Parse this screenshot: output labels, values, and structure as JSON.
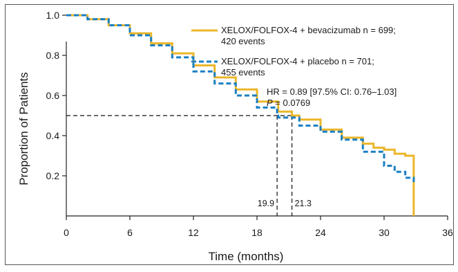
{
  "chart_data": {
    "type": "line",
    "xlabel": "Time (months)",
    "ylabel": "Proportion of Patients",
    "xlim": [
      0,
      36
    ],
    "ylim": [
      0,
      1.0
    ],
    "x_ticks": [
      "0",
      "6",
      "12",
      "18",
      "24",
      "30",
      "36"
    ],
    "y_ticks": [
      "1.0",
      "0.8",
      "0.6",
      "0.4",
      "0.2"
    ],
    "grid": false,
    "legend_position": "top-right",
    "series": [
      {
        "name": "XELOX/FOLFOX-4 + bevacizumab n = 699;",
        "name_line2": "420 events",
        "color": "#EBB62A",
        "style": "solid",
        "x": [
          0,
          2,
          4,
          6,
          8,
          10,
          12,
          14,
          16,
          18,
          20,
          21.3,
          22,
          24,
          26,
          28,
          29,
          30,
          31,
          32,
          32.8,
          32.8
        ],
        "y": [
          1.0,
          0.98,
          0.95,
          0.91,
          0.86,
          0.81,
          0.75,
          0.69,
          0.63,
          0.57,
          0.52,
          0.5,
          0.48,
          0.43,
          0.39,
          0.36,
          0.34,
          0.33,
          0.31,
          0.3,
          0.27,
          0.0
        ]
      },
      {
        "name": "XELOX/FOLFOX-4 + placebo n = 701;",
        "name_line2": "455 events",
        "color": "#1A7FC4",
        "style": "dashed",
        "x": [
          0,
          2,
          4,
          6,
          8,
          10,
          12,
          14,
          16,
          18,
          19.9,
          20,
          22,
          24,
          26,
          28,
          30,
          31,
          32,
          32.8
        ],
        "y": [
          1.0,
          0.98,
          0.95,
          0.9,
          0.85,
          0.79,
          0.72,
          0.66,
          0.6,
          0.54,
          0.5,
          0.49,
          0.45,
          0.42,
          0.38,
          0.32,
          0.25,
          0.22,
          0.19,
          0.16
        ]
      }
    ],
    "annotations": {
      "hr_line": "HR = 0.89 [97.5% CI: 0.76–1.03]",
      "p_symbol": "P",
      "p_value": " = 0.0769",
      "median_y": 0.5,
      "median_placebo": 19.9,
      "median_bev": 21.3,
      "median_placebo_label": "19.9",
      "median_bev_label": "21.3"
    }
  }
}
